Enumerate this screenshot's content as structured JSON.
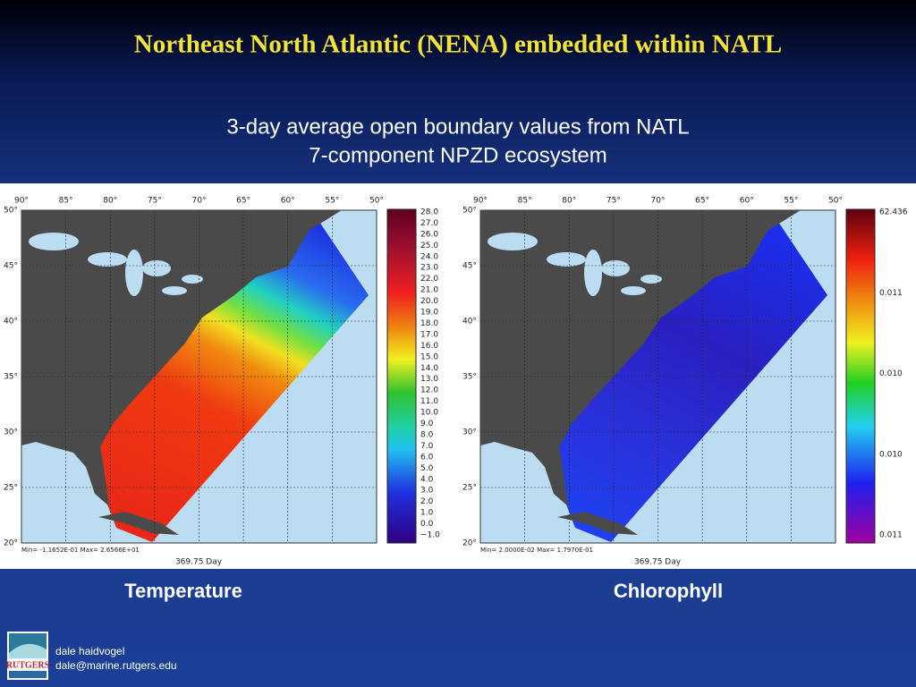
{
  "header": {
    "title": "Northeast North Atlantic (NENA) embedded within NATL",
    "subtitle": [
      "3-day average open boundary values from NATL",
      "7-component NPZD ecosystem"
    ]
  },
  "panels": [
    {
      "lon_labels": [
        "90°",
        "85°",
        "80°",
        "75°",
        "70°",
        "65°",
        "60°",
        "55°",
        "50°"
      ],
      "lat_labels": [
        "50°",
        "45°",
        "40°",
        "35°",
        "30°",
        "25°",
        "20°"
      ],
      "colorbar_labels": [
        "28.0",
        "27.0",
        "26.0",
        "25.0",
        "24.0",
        "23.0",
        "22.0",
        "21.0",
        "20.0",
        "19.0",
        "18.0",
        "17.0",
        "16.0",
        "15.0",
        "14.0",
        "13.0",
        "12.0",
        "11.0",
        "10.0",
        "9.0",
        "8.0",
        "7.0",
        "6.0",
        "5.0",
        "4.0",
        "3.0",
        "2.0",
        "1.0",
        "0.0",
        "−1.0"
      ],
      "stats": "Min= -1.1652E-01  Max= 2.6566E+01",
      "time": "369.75 Day",
      "caption": "Temperature"
    },
    {
      "lon_labels": [
        "90°",
        "85°",
        "80°",
        "75°",
        "70°",
        "65°",
        "60°",
        "55°",
        "50°"
      ],
      "lat_labels": [
        "50°",
        "45°",
        "40°",
        "35°",
        "30°",
        "25°",
        "20°"
      ],
      "colorbar_labels": [
        "62.436",
        "0.011",
        "0.010",
        "0.010",
        "0.011"
      ],
      "stats": "Min= 2.0000E-02  Max= 1.7970E-01",
      "time": "369.75 Day",
      "caption": "Chlorophyll"
    }
  ],
  "footer": {
    "logo": "RUTGERS",
    "author": "dale haidvogel",
    "email": "dale@marine.rutgers.edu"
  }
}
